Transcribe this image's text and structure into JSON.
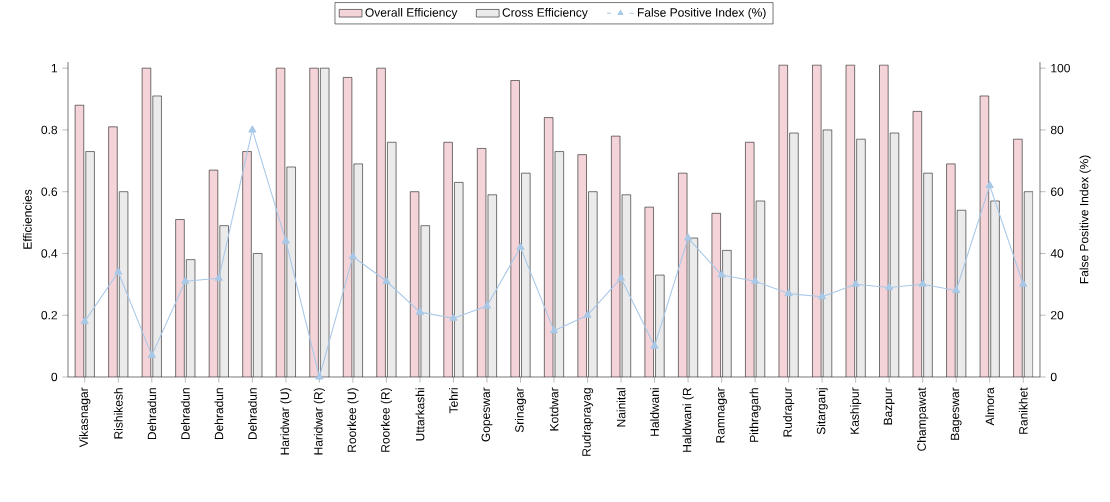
{
  "chart_data": {
    "type": "bar",
    "ylabel": "Efficiencies",
    "y2label": "False Positive Index (%)",
    "categories": [
      "Vikasnagar",
      "Rishikesh",
      "Dehradun",
      "Dehradun",
      "Dehradun",
      "Dehradun",
      "Haridwar (U)",
      "Haridwar (R)",
      "Roorkee (U)",
      "Roorkee (R)",
      "Uttarkashi",
      "Tehri",
      "Gopeswar",
      "Srinagar",
      "Kotdwar",
      "Rudraprayag",
      "Nainital",
      "Haldwani",
      "Haldwani (R",
      "Ramnagar",
      "Pithragarh",
      "Rudrapur",
      "Sitarganj",
      "Kashipur",
      "Bazpur",
      "Champawat",
      "Bageswar",
      "Almora",
      "Ranikhet"
    ],
    "series": [
      {
        "name": "Overall Efficiency",
        "color": "#f4d4d8",
        "values": [
          0.88,
          0.81,
          1.0,
          0.51,
          0.67,
          0.73,
          1.0,
          1.0,
          0.97,
          1.0,
          0.6,
          0.76,
          0.74,
          0.96,
          0.84,
          0.72,
          0.78,
          0.55,
          0.66,
          0.53,
          0.76,
          1.01,
          1.01,
          1.01,
          1.01,
          0.86,
          0.69,
          0.91,
          0.77
        ]
      },
      {
        "name": "Cross Efficiency",
        "color": "#ebebeb",
        "values": [
          0.73,
          0.6,
          0.91,
          0.38,
          0.49,
          0.4,
          0.68,
          1.0,
          0.69,
          0.76,
          0.49,
          0.63,
          0.59,
          0.66,
          0.73,
          0.6,
          0.59,
          0.33,
          0.45,
          0.41,
          0.57,
          0.79,
          0.8,
          0.77,
          0.79,
          0.66,
          0.54,
          0.57,
          0.6
        ]
      },
      {
        "name": "False Positive Index (%)",
        "color": "#a8c8e8",
        "type": "line",
        "axis": "y2",
        "values": [
          18,
          34,
          7,
          31,
          32,
          80,
          44,
          0,
          39,
          31,
          21,
          19,
          23,
          42,
          15,
          20,
          32,
          10,
          45,
          33,
          31,
          27,
          26,
          30,
          29,
          30,
          28,
          62,
          30
        ]
      }
    ],
    "ylim": [
      0,
      1.02
    ],
    "yticks": [
      0,
      0.2,
      0.4,
      0.6,
      0.8,
      1
    ],
    "y2lim": [
      0,
      102
    ],
    "y2ticks": [
      0,
      20,
      40,
      60,
      80,
      100
    ],
    "legend": "top",
    "marker": "triangle"
  }
}
